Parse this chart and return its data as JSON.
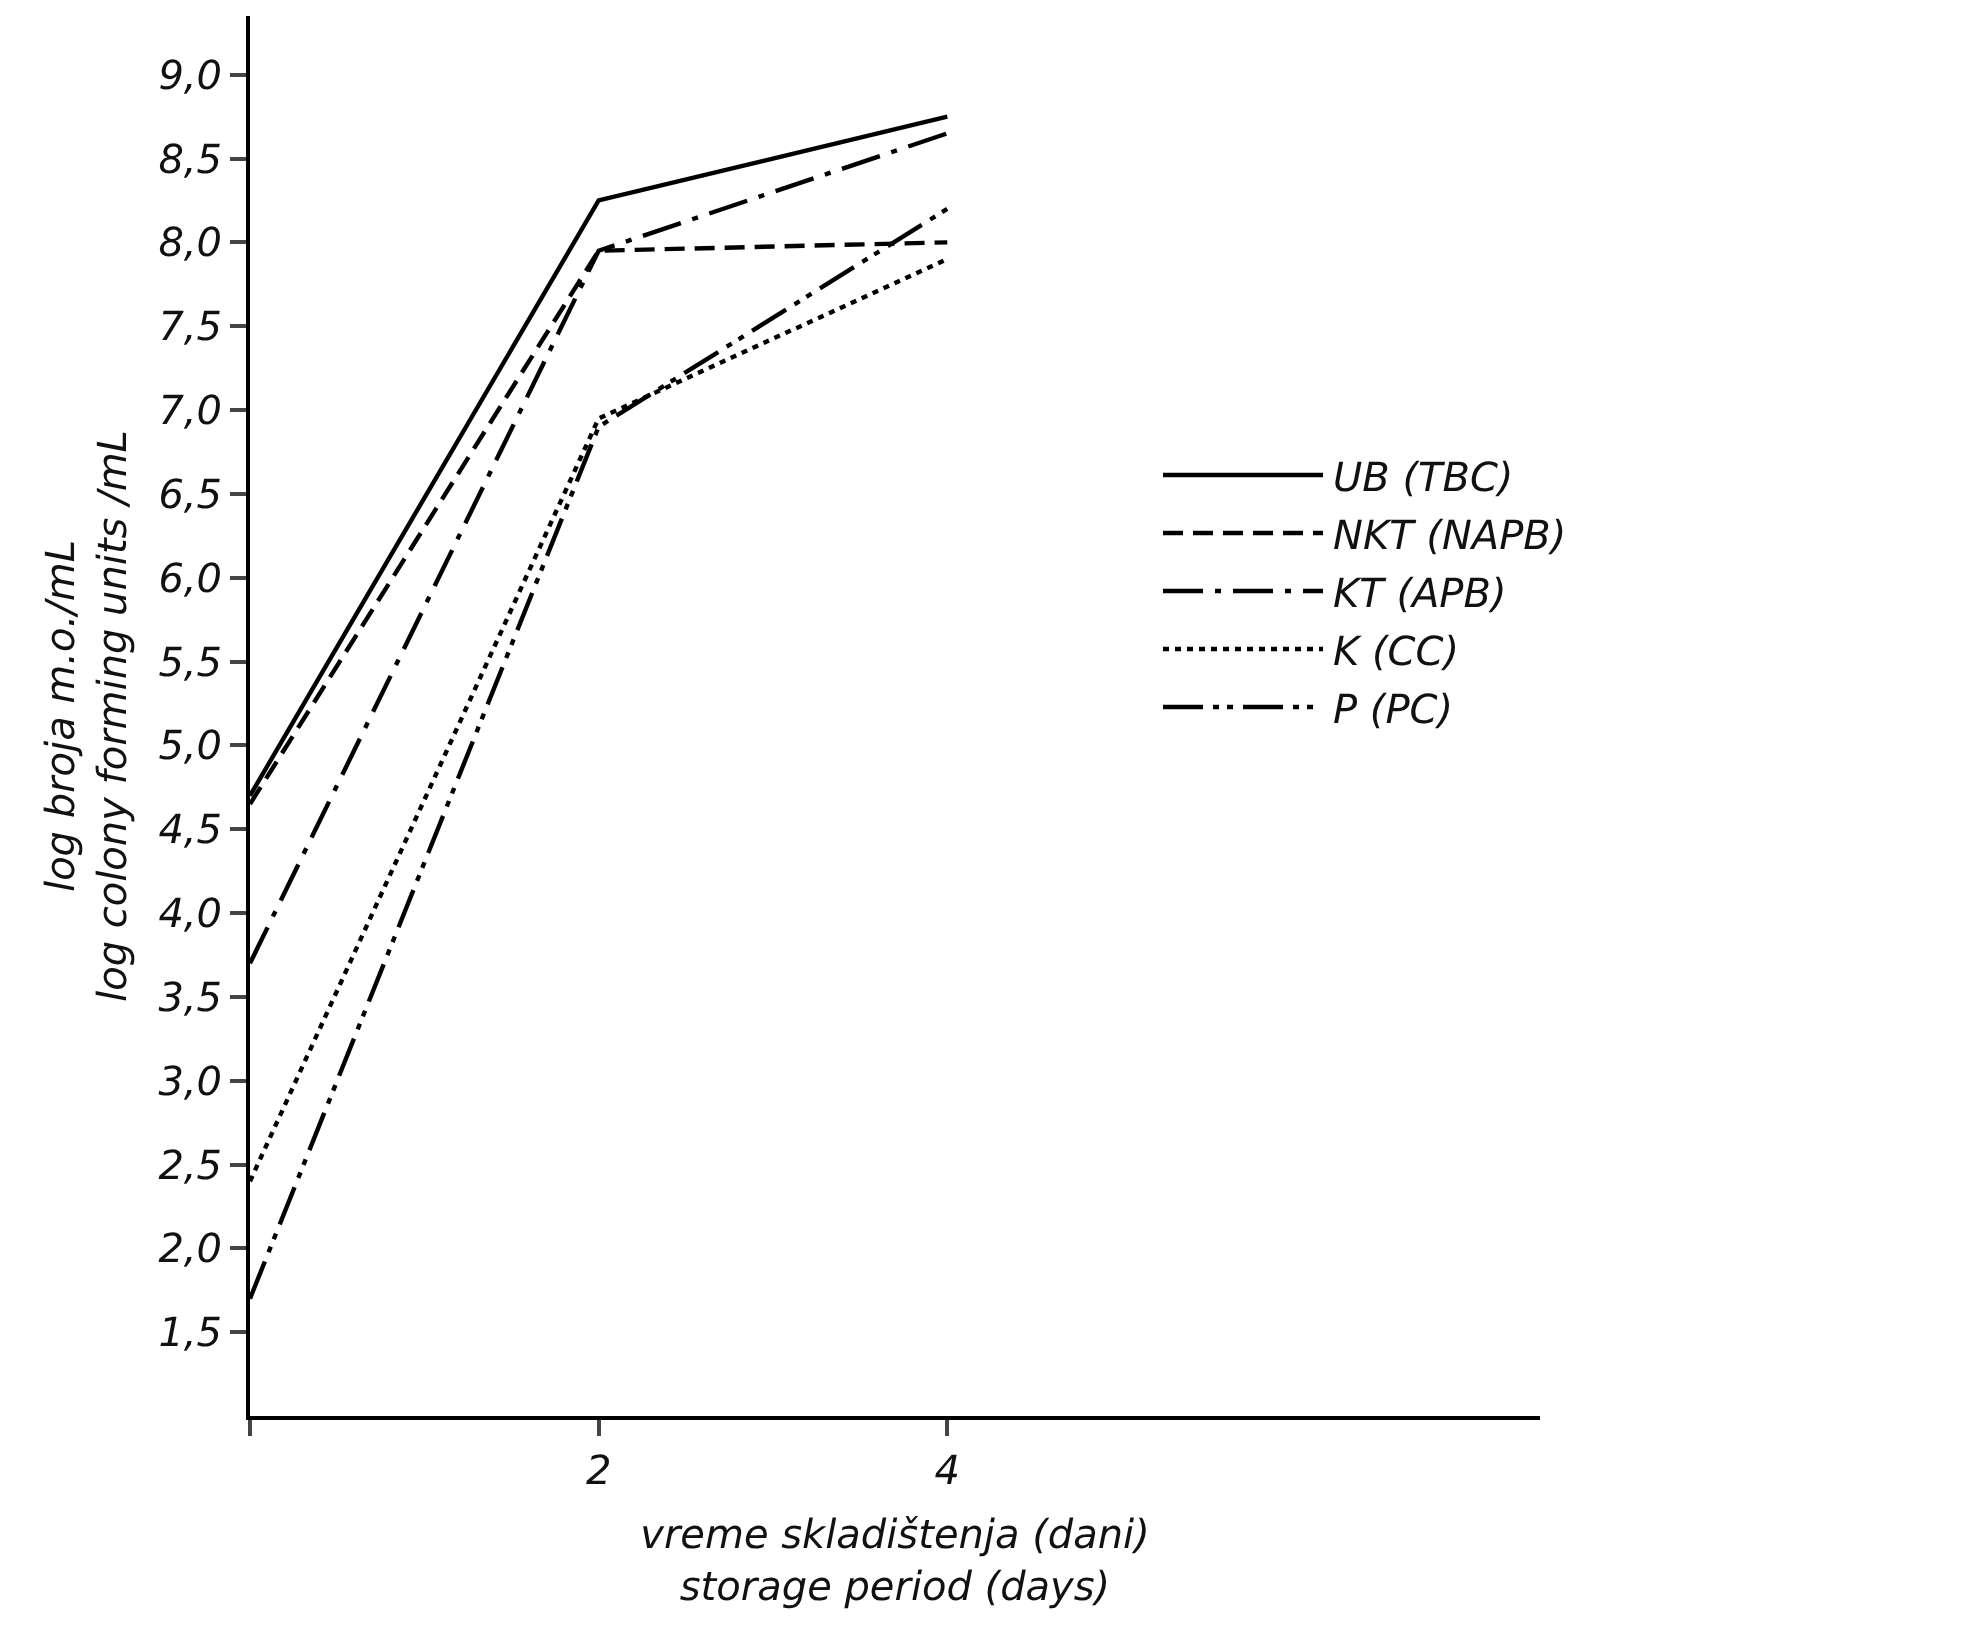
{
  "chart_data": {
    "type": "line",
    "xlabel": "vreme skladištenja (dani)\nstorage period (days)",
    "ylabel": "log broja m.o./mL\nlog colony forming units /mL",
    "x": [
      0,
      2,
      4
    ],
    "xlim": [
      0,
      7.4
    ],
    "xticks": [
      {
        "value": 0,
        "label": null
      },
      2,
      4
    ],
    "ylim": [
      1.0,
      9.35
    ],
    "yticks": [
      {
        "value": 1.5,
        "label": "1,5"
      },
      {
        "value": 2.0,
        "label": "2,0"
      },
      {
        "value": 2.5,
        "label": "2,5"
      },
      {
        "value": 3.0,
        "label": "3,0"
      },
      {
        "value": 3.5,
        "label": "3,5"
      },
      {
        "value": 4.0,
        "label": "4,0"
      },
      {
        "value": 4.5,
        "label": "4,5"
      },
      {
        "value": 5.0,
        "label": "5,0"
      },
      {
        "value": 5.5,
        "label": "5,5"
      },
      {
        "value": 6.0,
        "label": "6,0"
      },
      {
        "value": 6.5,
        "label": "6,5"
      },
      {
        "value": 7.0,
        "label": "7,0"
      },
      {
        "value": 7.5,
        "label": "7,5"
      },
      {
        "value": 8.0,
        "label": "8,0"
      },
      {
        "value": 8.5,
        "label": "8,5"
      },
      {
        "value": 9.0,
        "label": "9,0"
      }
    ],
    "grid": false,
    "legend": "right",
    "marker": "none",
    "series": [
      {
        "name": "UB (TBC)",
        "color": "#000000",
        "line_style": "solid",
        "values": [
          4.7,
          8.25,
          8.75
        ]
      },
      {
        "name": "NKT (NAPB)",
        "color": "#000000",
        "line_style": "dashed",
        "values": [
          4.65,
          7.95,
          8.0
        ]
      },
      {
        "name": "KT (APB)",
        "color": "#000000",
        "line_style": "dashdot",
        "values": [
          3.7,
          7.95,
          8.65
        ]
      },
      {
        "name": "K (CC)",
        "color": "#000000",
        "line_style": "dotted",
        "values": [
          2.4,
          6.95,
          7.9
        ]
      },
      {
        "name": "P (PC)",
        "color": "#000000",
        "line_style": "dashdotdot",
        "values": [
          1.7,
          6.9,
          8.2
        ]
      }
    ]
  }
}
